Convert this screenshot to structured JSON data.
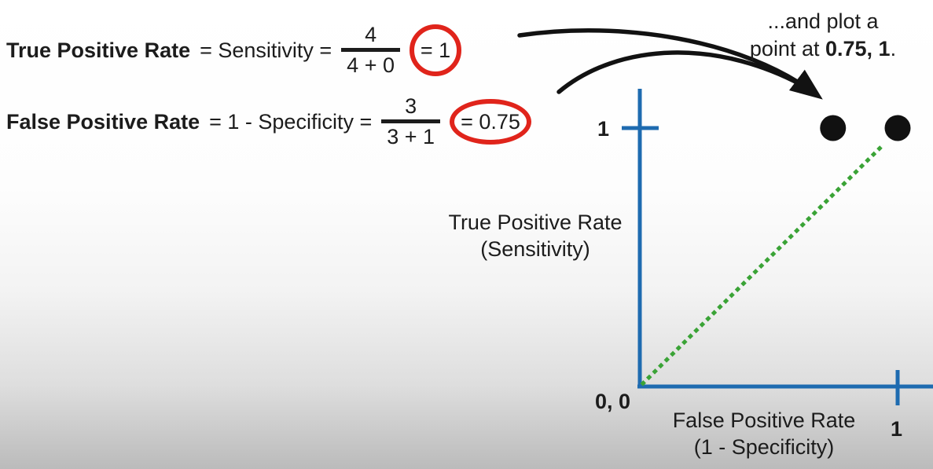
{
  "colors": {
    "axis_blue": "#1e6bb0",
    "diagonal_green": "#3aa336",
    "circle_red": "#e0241b",
    "text_ink": "#1c1c1c",
    "point_black": "#111111",
    "background_top": "#ffffff",
    "background_bottom": "#bbbbbb"
  },
  "equations": [
    {
      "term": "True Positive Rate",
      "rest": "= Sensitivity =",
      "numerator": "4",
      "denominator": "4 + 0",
      "result": "= 1"
    },
    {
      "term": "False Positive Rate",
      "rest": "= 1 - Specificity =",
      "numerator": "3",
      "denominator": "3 + 1",
      "result": "= 0.75"
    }
  ],
  "annotation": {
    "line1": "...and plot a",
    "line2_prefix": "point at ",
    "line2_value": "0.75, 1",
    "line2_suffix": "."
  },
  "chart_data": {
    "type": "scatter",
    "title": "",
    "xlabel_line1": "False Positive Rate",
    "xlabel_line2": "(1 - Specificity)",
    "ylabel_line1": "True Positive Rate",
    "ylabel_line2": "(Sensitivity)",
    "xlim": [
      0,
      1
    ],
    "ylim": [
      0,
      1
    ],
    "x_ticks": [
      {
        "value": 1,
        "label": "1"
      }
    ],
    "y_ticks": [
      {
        "value": 1,
        "label": "1"
      }
    ],
    "origin_label": "0, 0",
    "points": [
      {
        "x": 0.75,
        "y": 1
      },
      {
        "x": 1,
        "y": 1
      }
    ],
    "reference_line": {
      "from": [
        0,
        0
      ],
      "to": [
        1,
        1
      ],
      "style": "dotted",
      "color": "#3aa336"
    },
    "point_color": "#111111",
    "axis_color": "#1e6bb0",
    "grid": false,
    "legend": false
  }
}
